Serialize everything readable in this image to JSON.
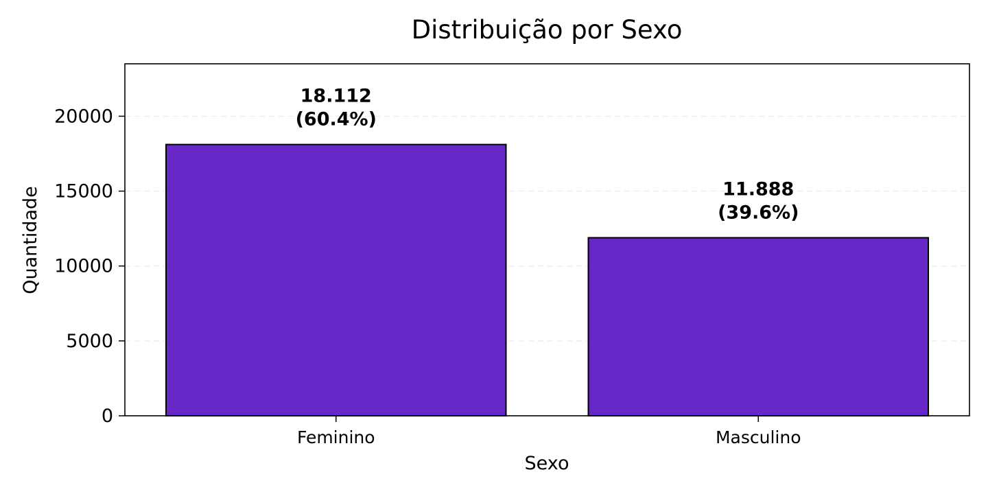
{
  "chart_data": {
    "type": "bar",
    "title": "Distribuição por Sexo",
    "xlabel": "Sexo",
    "ylabel": "Quantidade",
    "categories": [
      "Feminino",
      "Masculino"
    ],
    "values": [
      18112,
      11888
    ],
    "data_labels": [
      [
        "18.112",
        "(60.4%)"
      ],
      [
        "11.888",
        "(39.6%)"
      ]
    ],
    "ylim": [
      0,
      23500
    ],
    "yticks": [
      0,
      5000,
      10000,
      15000,
      20000
    ],
    "ytick_labels": [
      "0",
      "5000",
      "10000",
      "15000",
      "20000"
    ],
    "grid": "horizontal dashed",
    "bar_color": "#6828c8",
    "edge_color": "#000000"
  }
}
